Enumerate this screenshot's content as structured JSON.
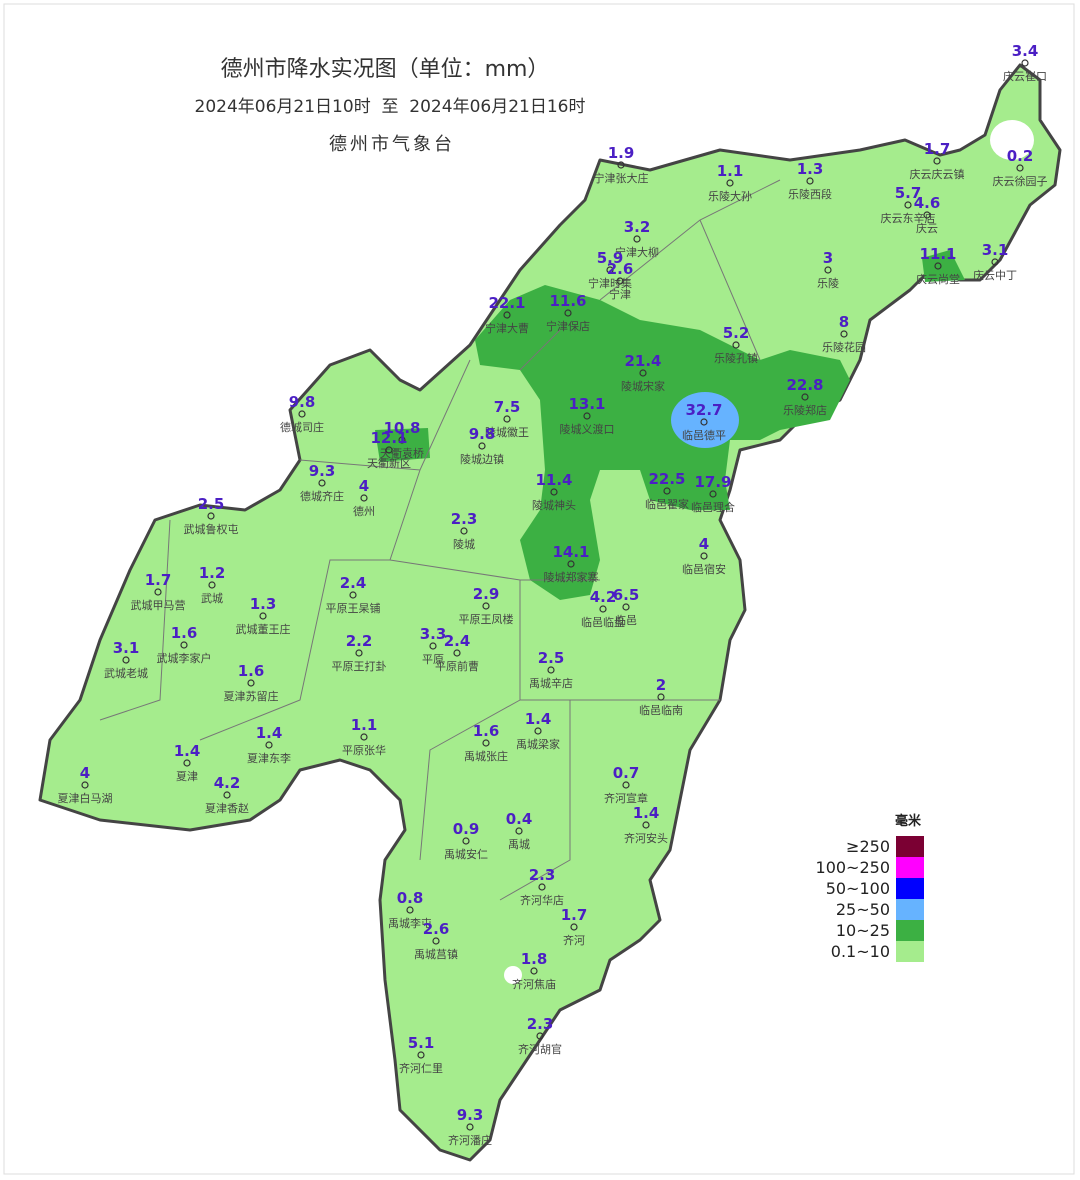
{
  "title": "德州市降水实况图（单位：mm）",
  "time_range": "2024年06月21日10时  至  2024年06月21日16时",
  "issuer": "德州市气象台",
  "legend": {
    "title": "毫米",
    "items": [
      {
        "label": "≥250",
        "color": "#7b0033"
      },
      {
        "label": "100~250",
        "color": "#ff00ff"
      },
      {
        "label": "50~100",
        "color": "#0000ff"
      },
      {
        "label": "25~50",
        "color": "#66b3ff"
      },
      {
        "label": "10~25",
        "color": "#3cb043"
      },
      {
        "label": "0.1~10",
        "color": "#a5ec8d"
      }
    ]
  },
  "stations": [
    {
      "name": "庆云崔口",
      "value": 3.4
    },
    {
      "name": "庆云徐园子",
      "value": 0.2
    },
    {
      "name": "庆云庆云镇",
      "value": 1.7
    },
    {
      "name": "宁津张大庄",
      "value": 1.9
    },
    {
      "name": "乐陵大孙",
      "value": 1.1
    },
    {
      "name": "乐陵西段",
      "value": 1.3
    },
    {
      "name": "庆云东辛店",
      "value": 5.7
    },
    {
      "name": "庆云",
      "value": 4.6
    },
    {
      "name": "宁津大柳",
      "value": 3.2
    },
    {
      "name": "宁津时集",
      "value": 5.9
    },
    {
      "name": "宁津",
      "value": 2.6
    },
    {
      "name": "乐陵",
      "value": 3
    },
    {
      "name": "庆云尚堂",
      "value": 11.1
    },
    {
      "name": "庆云中丁",
      "value": 3.1
    },
    {
      "name": "宁津大曹",
      "value": 22.1
    },
    {
      "name": "宁津保店",
      "value": 11.6
    },
    {
      "name": "乐陵花园",
      "value": 8
    },
    {
      "name": "乐陵孔镇",
      "value": 5.2
    },
    {
      "name": "陵城宋家",
      "value": 21.4
    },
    {
      "name": "乐陵郑店",
      "value": 22.8
    },
    {
      "name": "德城司庄",
      "value": 9.8
    },
    {
      "name": "陵城徽王",
      "value": 7.5
    },
    {
      "name": "陵城义渡口",
      "value": 13.1
    },
    {
      "name": "临邑德平",
      "value": 32.7
    },
    {
      "name": "天衢袁桥",
      "value": 10.8
    },
    {
      "name": "天衢新区",
      "value": 12.1
    },
    {
      "name": "陵城边镇",
      "value": 9.8
    },
    {
      "name": "德城齐庄",
      "value": 9.3
    },
    {
      "name": "德州",
      "value": 4
    },
    {
      "name": "陵城神头",
      "value": 11.4
    },
    {
      "name": "临邑翟家",
      "value": 22.5
    },
    {
      "name": "临邑理合",
      "value": 17.9
    },
    {
      "name": "武城鲁权屯",
      "value": 2.5
    },
    {
      "name": "陵城",
      "value": 2.3
    },
    {
      "name": "临邑宿安",
      "value": 4
    },
    {
      "name": "陵城郑家寨",
      "value": 14.1
    },
    {
      "name": "武城甲马营",
      "value": 1.7
    },
    {
      "name": "武城",
      "value": 1.2
    },
    {
      "name": "平原王杲铺",
      "value": 2.4
    },
    {
      "name": "武城董王庄",
      "value": 1.3
    },
    {
      "name": "平原王凤楼",
      "value": 2.9
    },
    {
      "name": "临邑临盘",
      "value": 4.2
    },
    {
      "name": "临邑",
      "value": 6.5
    },
    {
      "name": "武城李家户",
      "value": 1.6
    },
    {
      "name": "武城老城",
      "value": 3.1
    },
    {
      "name": "平原王打卦",
      "value": 2.2
    },
    {
      "name": "平原",
      "value": 3.3
    },
    {
      "name": "平原前曹",
      "value": 2.4
    },
    {
      "name": "禹城辛店",
      "value": 2.5
    },
    {
      "name": "夏津苏留庄",
      "value": 1.6
    },
    {
      "name": "临邑临南",
      "value": 2
    },
    {
      "name": "平原张华",
      "value": 1.1
    },
    {
      "name": "夏津东李",
      "value": 1.4
    },
    {
      "name": "禹城张庄",
      "value": 1.6
    },
    {
      "name": "禹城梁家",
      "value": 1.4
    },
    {
      "name": "夏津",
      "value": 1.4
    },
    {
      "name": "夏津白马湖",
      "value": 4
    },
    {
      "name": "夏津香赵",
      "value": 4.2
    },
    {
      "name": "齐河宣章",
      "value": 0.7
    },
    {
      "name": "齐河安头",
      "value": 1.4
    },
    {
      "name": "禹城安仁",
      "value": 0.9
    },
    {
      "name": "禹城",
      "value": 0.4
    },
    {
      "name": "齐河华店",
      "value": 2.3
    },
    {
      "name": "禹城李屯",
      "value": 0.8
    },
    {
      "name": "齐河",
      "value": 1.7
    },
    {
      "name": "禹城莒镇",
      "value": 2.6
    },
    {
      "name": "齐河焦庙",
      "value": 1.8
    },
    {
      "name": "齐河胡官",
      "value": 2.3
    },
    {
      "name": "齐河仁里",
      "value": 5.1
    },
    {
      "name": "齐河潘庄",
      "value": 9.3
    }
  ]
}
